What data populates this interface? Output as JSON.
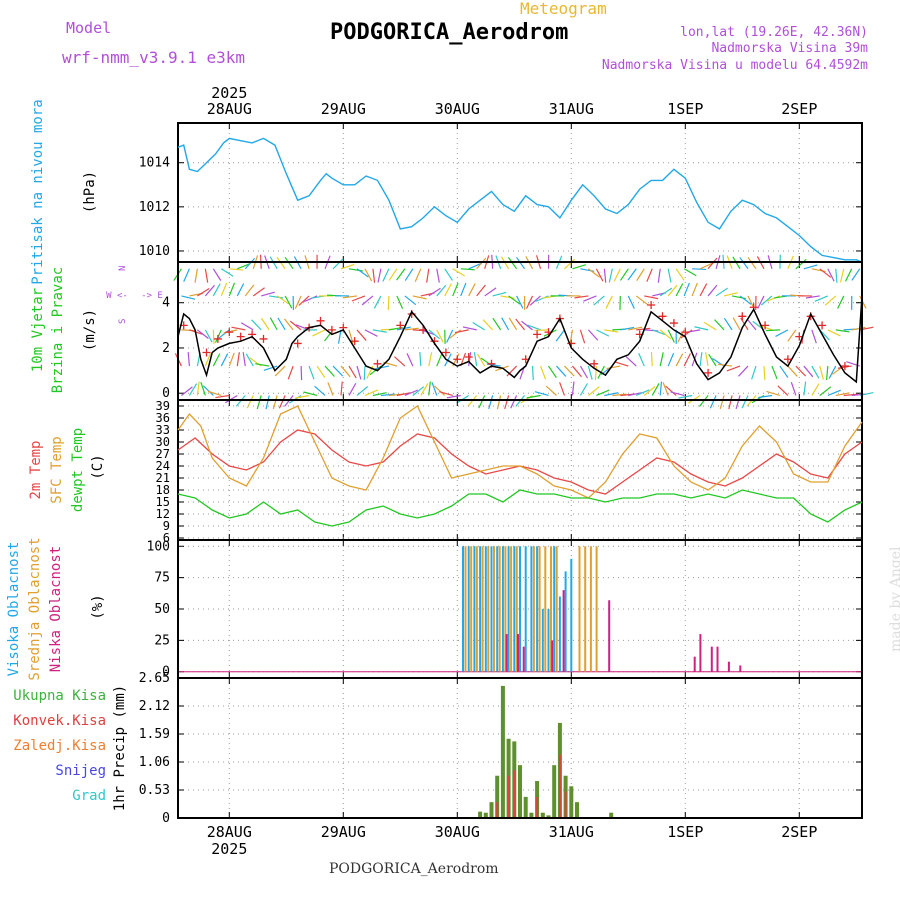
{
  "header": {
    "model_label": "Model",
    "model_name": "wrf-nmm_v3.9.1 e3km",
    "subtitle": "Meteogram",
    "station": "PODGORICA_Aerodrom",
    "lonlat": "lon,lat (19.26E, 42.36N)",
    "elevation": "Nadmorska Visina 39m",
    "model_elevation": "Nadmorska Visina u modelu 64.4592m",
    "watermark": "made by Angel",
    "footer_station": "PODGORICA_Aerodrom"
  },
  "colors": {
    "model": "#b050d8",
    "subtitle": "#e8b830",
    "pressure": "#22a8e8",
    "wind_label": "#22c822",
    "wind_speed": "#000000",
    "wind_plus": "#e02828",
    "temp2m": "#e84848",
    "sfc": "#e0a030",
    "dewpt": "#22c822",
    "cloud_high": "#22a8e8",
    "cloud_mid": "#e0a030",
    "cloud_low": "#d02080",
    "precip_total": "#40b040",
    "precip_conv": "#e04040",
    "precip_frz": "#f08030",
    "precip_snow": "#4848e0",
    "precip_hail": "#30c8c8",
    "watermark": "#dddddd"
  },
  "chart_data": {
    "type": "meteogram",
    "time_axis": {
      "unit": "days since 2025-08-27 00:00",
      "range": [
        0.55,
        6.55
      ],
      "ticks": [
        1,
        2,
        3,
        4,
        5,
        6
      ],
      "tick_labels": [
        "28AUG",
        "29AUG",
        "30AUG",
        "31AUG",
        "1SEP",
        "2SEP"
      ],
      "year_label": "2025"
    },
    "panels": [
      {
        "id": "pressure",
        "labels": [
          "Pritisak na nivou mora"
        ],
        "unit": "(hPa)",
        "ylim": [
          1009.5,
          1015.8
        ],
        "yticks": [
          1010,
          1012,
          1014
        ],
        "series": [
          {
            "name": "MSLP",
            "x": [
              0.55,
              0.6,
              0.65,
              0.72,
              0.8,
              0.88,
              0.95,
              1.0,
              1.1,
              1.2,
              1.3,
              1.4,
              1.5,
              1.6,
              1.7,
              1.8,
              1.85,
              1.9,
              2.0,
              2.1,
              2.2,
              2.3,
              2.4,
              2.5,
              2.6,
              2.7,
              2.8,
              2.85,
              2.9,
              3.0,
              3.1,
              3.2,
              3.3,
              3.4,
              3.5,
              3.6,
              3.7,
              3.8,
              3.9,
              4.0,
              4.1,
              4.2,
              4.3,
              4.4,
              4.5,
              4.6,
              4.7,
              4.8,
              4.9,
              5.0,
              5.1,
              5.2,
              5.3,
              5.4,
              5.5,
              5.6,
              5.7,
              5.8,
              5.9,
              6.0,
              6.1,
              6.2,
              6.3,
              6.4,
              6.5,
              6.55
            ],
            "y": [
              1014.7,
              1014.8,
              1013.7,
              1013.6,
              1014.0,
              1014.4,
              1014.9,
              1015.1,
              1015.0,
              1014.9,
              1015.1,
              1014.8,
              1013.5,
              1012.3,
              1012.5,
              1013.2,
              1013.5,
              1013.3,
              1013.0,
              1013.0,
              1013.4,
              1013.2,
              1012.3,
              1011.0,
              1011.1,
              1011.5,
              1012.0,
              1011.8,
              1011.6,
              1011.3,
              1011.9,
              1012.3,
              1012.7,
              1012.1,
              1011.8,
              1012.5,
              1012.1,
              1012.0,
              1011.5,
              1012.3,
              1013.0,
              1012.5,
              1011.9,
              1011.7,
              1012.1,
              1012.8,
              1013.2,
              1013.2,
              1013.7,
              1013.3,
              1012.2,
              1011.3,
              1011.0,
              1011.8,
              1012.3,
              1012.1,
              1011.7,
              1011.5,
              1011.1,
              1010.7,
              1010.2,
              1009.8,
              1009.7,
              1009.6,
              1009.6,
              1009.5
            ]
          }
        ]
      },
      {
        "id": "wind",
        "labels": [
          "10m Vjetar",
          "Brzina i Pravac"
        ],
        "unit": "(m/s)",
        "compass": {
          "n": "N",
          "w": "W",
          "e": "E",
          "s": "S"
        },
        "ylim": [
          -0.3,
          5.8
        ],
        "yticks": [
          0,
          2,
          4
        ],
        "series": [
          {
            "name": "Speed",
            "x": [
              0.55,
              0.6,
              0.65,
              0.7,
              0.75,
              0.8,
              0.85,
              0.9,
              1.0,
              1.1,
              1.2,
              1.3,
              1.4,
              1.5,
              1.55,
              1.6,
              1.7,
              1.8,
              1.9,
              2.0,
              2.1,
              2.2,
              2.3,
              2.4,
              2.5,
              2.6,
              2.7,
              2.8,
              2.9,
              3.0,
              3.1,
              3.2,
              3.3,
              3.4,
              3.5,
              3.55,
              3.6,
              3.7,
              3.8,
              3.9,
              4.0,
              4.1,
              4.2,
              4.3,
              4.4,
              4.5,
              4.6,
              4.7,
              4.8,
              4.9,
              5.0,
              5.1,
              5.2,
              5.3,
              5.4,
              5.5,
              5.6,
              5.7,
              5.8,
              5.9,
              6.0,
              6.1,
              6.2,
              6.3,
              6.4,
              6.5,
              6.55
            ],
            "y": [
              2.5,
              3.5,
              3.3,
              2.8,
              1.5,
              0.8,
              1.8,
              2.0,
              2.2,
              2.3,
              2.5,
              2.0,
              1.0,
              1.5,
              2.2,
              2.5,
              2.9,
              3.0,
              2.6,
              2.8,
              2.0,
              1.2,
              1.0,
              1.5,
              2.5,
              3.6,
              3.0,
              2.2,
              1.5,
              1.2,
              1.4,
              0.9,
              1.2,
              1.1,
              0.7,
              1.0,
              1.2,
              2.3,
              2.5,
              3.3,
              2.0,
              1.5,
              1.1,
              0.8,
              1.5,
              1.7,
              2.3,
              3.6,
              3.2,
              2.8,
              2.5,
              1.3,
              0.6,
              0.9,
              1.6,
              2.9,
              3.7,
              2.6,
              1.6,
              1.2,
              2.1,
              3.5,
              2.6,
              1.7,
              0.9,
              0.5,
              4.3
            ]
          },
          {
            "name": "Gust marks",
            "x": [
              0.6,
              0.8,
              0.9,
              1.0,
              1.1,
              1.2,
              1.3,
              1.6,
              1.7,
              1.8,
              1.9,
              2.0,
              2.1,
              2.3,
              2.5,
              2.6,
              2.7,
              2.8,
              2.9,
              3.0,
              3.1,
              3.3,
              3.6,
              3.7,
              3.8,
              3.9,
              4.0,
              4.2,
              4.6,
              4.7,
              4.8,
              4.9,
              5.0,
              5.2,
              5.5,
              5.6,
              5.7,
              5.9,
              6.0,
              6.1,
              6.2,
              6.4
            ],
            "y": [
              3.0,
              1.8,
              2.4,
              2.7,
              2.5,
              2.6,
              2.4,
              2.2,
              2.9,
              3.2,
              2.8,
              2.9,
              2.3,
              1.3,
              3.0,
              3.5,
              2.8,
              2.3,
              1.8,
              1.5,
              1.6,
              1.3,
              1.5,
              2.6,
              2.7,
              3.3,
              2.2,
              1.3,
              2.6,
              3.9,
              3.4,
              3.1,
              2.7,
              0.9,
              3.4,
              3.8,
              3.0,
              1.5,
              2.5,
              3.4,
              3.0,
              1.2
            ]
          }
        ]
      },
      {
        "id": "temperature",
        "labels": [
          "2m Temp",
          "SFC Temp",
          "dewpt Temp"
        ],
        "unit": "(C)",
        "ylim": [
          5.5,
          40.5
        ],
        "yticks": [
          6,
          9,
          12,
          15,
          18,
          21,
          24,
          27,
          30,
          33,
          36,
          39
        ],
        "series": [
          {
            "name": "2m Temp",
            "x": [
              0.55,
              0.7,
              0.85,
              1.0,
              1.15,
              1.3,
              1.45,
              1.6,
              1.75,
              1.9,
              2.05,
              2.2,
              2.35,
              2.5,
              2.65,
              2.8,
              2.95,
              3.1,
              3.25,
              3.4,
              3.55,
              3.7,
              3.85,
              4.0,
              4.15,
              4.3,
              4.45,
              4.6,
              4.75,
              4.9,
              5.05,
              5.2,
              5.35,
              5.5,
              5.65,
              5.8,
              5.95,
              6.1,
              6.25,
              6.4,
              6.55
            ],
            "y": [
              28,
              31,
              27,
              24,
              23,
              25,
              30,
              33,
              32,
              28,
              25,
              24,
              25,
              29,
              32,
              31,
              27,
              24,
              22,
              23,
              24,
              23,
              21,
              20,
              18,
              17,
              20,
              23,
              26,
              25,
              22,
              20,
              19,
              21,
              24,
              27,
              25,
              22,
              21,
              27,
              30
            ]
          },
          {
            "name": "SFC Temp",
            "x": [
              0.55,
              0.65,
              0.75,
              0.85,
              1.0,
              1.15,
              1.3,
              1.45,
              1.6,
              1.75,
              1.9,
              2.05,
              2.2,
              2.35,
              2.5,
              2.65,
              2.8,
              2.95,
              3.1,
              3.25,
              3.4,
              3.55,
              3.7,
              3.85,
              4.0,
              4.15,
              4.3,
              4.45,
              4.6,
              4.75,
              4.9,
              5.05,
              5.2,
              5.35,
              5.5,
              5.65,
              5.8,
              5.95,
              6.1,
              6.25,
              6.4,
              6.55
            ],
            "y": [
              33,
              37,
              34,
              26,
              21,
              19,
              26,
              37,
              39,
              30,
              21,
              19,
              18,
              26,
              36,
              39,
              30,
              21,
              22,
              23,
              24,
              24,
              22,
              19,
              18,
              16,
              20,
              27,
              32,
              31,
              24,
              20,
              18,
              21,
              29,
              34,
              30,
              22,
              20,
              20,
              29,
              35
            ]
          },
          {
            "name": "dewpt Temp",
            "x": [
              0.55,
              0.7,
              0.85,
              1.0,
              1.15,
              1.3,
              1.45,
              1.6,
              1.75,
              1.9,
              2.05,
              2.2,
              2.35,
              2.5,
              2.65,
              2.8,
              2.95,
              3.1,
              3.25,
              3.4,
              3.55,
              3.7,
              3.85,
              4.0,
              4.15,
              4.3,
              4.45,
              4.6,
              4.75,
              4.9,
              5.05,
              5.2,
              5.35,
              5.5,
              5.65,
              5.8,
              5.95,
              6.1,
              6.25,
              6.4,
              6.55
            ],
            "y": [
              17,
              16,
              13,
              11,
              12,
              15,
              12,
              13,
              10,
              9,
              10,
              13,
              14,
              12,
              11,
              12,
              14,
              17,
              17,
              15,
              18,
              17,
              17,
              16,
              16,
              15,
              16,
              16,
              17,
              17,
              16,
              17,
              16,
              18,
              17,
              16,
              16,
              12,
              10,
              13,
              15
            ]
          }
        ]
      },
      {
        "id": "clouds",
        "labels": [
          "Visoka Oblacnost",
          "Srednja Oblacnost",
          "Niska Oblacnost"
        ],
        "unit": "(%)",
        "ylim": [
          -5,
          105
        ],
        "yticks": [
          0,
          25,
          50,
          75,
          100
        ],
        "high": {
          "x": [
            3.05,
            3.1,
            3.15,
            3.2,
            3.25,
            3.3,
            3.35,
            3.4,
            3.45,
            3.5,
            3.55,
            3.6,
            3.65,
            3.7,
            3.75,
            3.8,
            3.85,
            3.9,
            3.95,
            4.0
          ],
          "values": [
            100,
            100,
            100,
            100,
            100,
            100,
            100,
            100,
            100,
            100,
            100,
            100,
            100,
            100,
            50,
            50,
            100,
            60,
            80,
            90
          ]
        },
        "mid": {
          "x": [
            3.05,
            3.1,
            3.15,
            3.2,
            3.25,
            3.3,
            3.35,
            3.4,
            3.45,
            3.5,
            3.65,
            3.7,
            3.75,
            3.8,
            3.85,
            4.05,
            4.1,
            4.15,
            4.2
          ],
          "values": [
            100,
            100,
            100,
            100,
            100,
            100,
            100,
            100,
            100,
            100,
            100,
            100,
            100,
            100,
            100,
            100,
            100,
            100,
            100
          ]
        },
        "low": {
          "x": [
            3.45,
            3.55,
            3.6,
            3.85,
            3.95,
            4.35,
            5.1,
            5.15,
            5.25,
            5.3,
            5.4,
            5.5
          ],
          "values": [
            30,
            30,
            20,
            25,
            65,
            57,
            12,
            30,
            20,
            20,
            8,
            5
          ]
        }
      },
      {
        "id": "precip",
        "labels": [
          "Ukupna Kisa",
          "Konvek.Kisa",
          "Zaledj.Kisa",
          "Snijeg",
          "Grad"
        ],
        "unit": "1hr Precip (mm)",
        "ylim": [
          0,
          2.65
        ],
        "yticks": [
          0,
          0.53,
          1.06,
          1.59,
          2.12,
          2.65
        ],
        "ytick_labels": [
          "0",
          "0.53",
          "1.06",
          "1.59",
          "2.12",
          "2.65"
        ],
        "total": {
          "x": [
            3.2,
            3.25,
            3.3,
            3.35,
            3.4,
            3.45,
            3.5,
            3.55,
            3.6,
            3.65,
            3.7,
            3.75,
            3.8,
            3.85,
            3.9,
            3.95,
            4.0,
            4.05,
            4.35
          ],
          "values": [
            0.12,
            0.1,
            0.3,
            0.8,
            2.5,
            1.5,
            1.45,
            1.0,
            0.4,
            0.1,
            0.7,
            0.1,
            0.05,
            1.0,
            1.8,
            0.8,
            0.6,
            0.3,
            0.1
          ]
        },
        "conv": {
          "x": [
            3.35,
            3.45,
            3.5,
            3.7,
            3.9,
            3.95
          ],
          "values": [
            0.3,
            0.8,
            0.9,
            0.4,
            1.2,
            0.5
          ]
        }
      }
    ]
  }
}
